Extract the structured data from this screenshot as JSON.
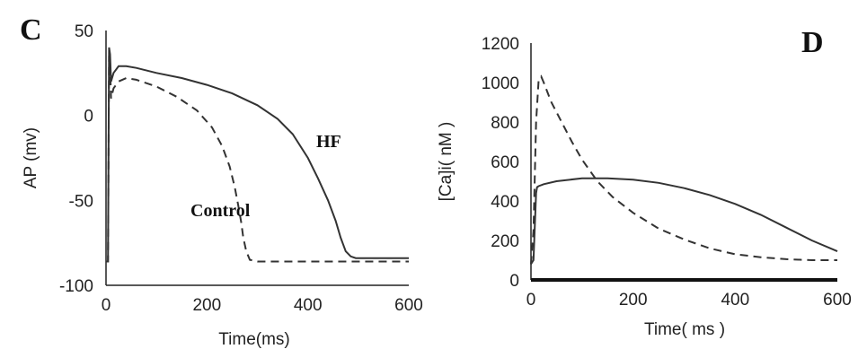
{
  "chart_data": [
    {
      "type": "line",
      "panel_label": "C",
      "xlabel": "Time(ms)",
      "ylabel": "AP (mv)",
      "xlim": [
        0,
        600
      ],
      "ylim": [
        -100,
        50
      ],
      "xticks": [
        "0",
        "200",
        "400",
        "600"
      ],
      "yticks": [
        "50",
        "0",
        "-50",
        "-100"
      ],
      "grid": false,
      "annotations": [
        {
          "text": "HF",
          "x": 370,
          "y": -25
        },
        {
          "text": "Control",
          "x": 235,
          "y": -95
        }
      ],
      "series": [
        {
          "name": "HF",
          "style": "solid",
          "x": [
            0,
            4,
            6,
            8,
            10,
            15,
            25,
            40,
            60,
            100,
            150,
            200,
            250,
            300,
            340,
            370,
            400,
            420,
            440,
            455,
            465,
            475,
            485,
            495,
            510,
            560,
            600
          ],
          "y": [
            -86,
            -86,
            40,
            36,
            20,
            25,
            29,
            29,
            28,
            25,
            22,
            18,
            13,
            6,
            -2,
            -11,
            -25,
            -37,
            -50,
            -62,
            -72,
            -80,
            -83,
            -84,
            -84,
            -84,
            -84
          ]
        },
        {
          "name": "Control",
          "style": "dashed",
          "x": [
            0,
            4,
            6,
            8,
            10,
            15,
            25,
            40,
            60,
            100,
            140,
            180,
            210,
            230,
            245,
            255,
            262,
            268,
            272,
            278,
            285,
            300,
            350,
            450,
            600
          ],
          "y": [
            -86,
            -86,
            35,
            30,
            10,
            16,
            20,
            22,
            21,
            17,
            11,
            3,
            -7,
            -18,
            -30,
            -42,
            -53,
            -63,
            -72,
            -80,
            -85,
            -86,
            -86,
            -86,
            -86
          ]
        }
      ]
    },
    {
      "type": "line",
      "panel_label": "D",
      "xlabel": "Time( ms )",
      "ylabel": "[Ca]i( nM )",
      "xlim": [
        0,
        600
      ],
      "ylim": [
        0,
        1200
      ],
      "xticks": [
        "0",
        "200",
        "400",
        "600"
      ],
      "yticks": [
        "1200",
        "1000",
        "800",
        "600",
        "400",
        "200",
        "0"
      ],
      "grid": false,
      "series": [
        {
          "name": "HF",
          "style": "solid",
          "x": [
            0,
            5,
            8,
            10,
            12,
            15,
            25,
            50,
            100,
            150,
            200,
            250,
            300,
            350,
            400,
            450,
            500,
            550,
            600
          ],
          "y": [
            80,
            100,
            300,
            440,
            470,
            475,
            485,
            500,
            515,
            515,
            508,
            492,
            465,
            430,
            385,
            330,
            265,
            200,
            145
          ]
        },
        {
          "name": "Control",
          "style": "dashed",
          "x": [
            0,
            5,
            10,
            15,
            20,
            25,
            40,
            60,
            80,
            100,
            130,
            160,
            200,
            250,
            300,
            350,
            400,
            450,
            500,
            550,
            600
          ],
          "y": [
            80,
            250,
            800,
            1010,
            1030,
            1000,
            900,
            800,
            700,
            610,
            500,
            420,
            340,
            260,
            205,
            160,
            130,
            115,
            105,
            100,
            100
          ]
        }
      ]
    }
  ]
}
